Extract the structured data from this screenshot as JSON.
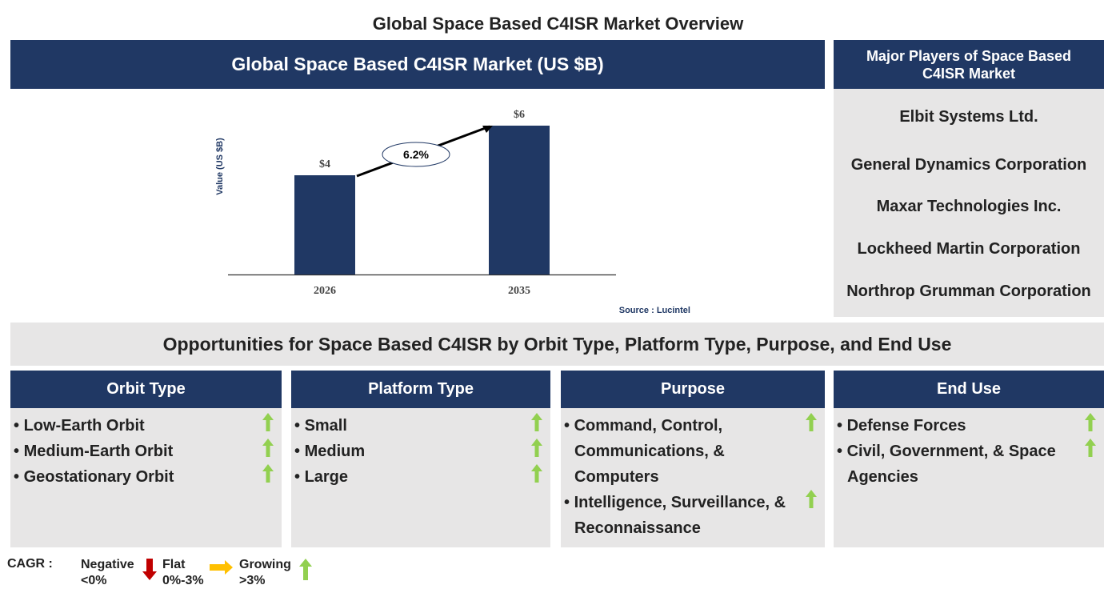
{
  "page_title": "Global Space Based C4ISR Market Overview",
  "chart_panel": {
    "header": "Global Space Based C4ISR Market (US $B)",
    "source": "Source : Lucintel"
  },
  "chart_data": {
    "type": "bar",
    "title": "Global Space Based C4ISR Market (US $B)",
    "ylabel": "Value (US $B)",
    "categories": [
      "2026",
      "2035"
    ],
    "values": [
      4,
      6
    ],
    "data_labels": [
      "$4",
      "$6"
    ],
    "ylim": [
      0,
      6
    ],
    "grid": false,
    "bar_color": "#203864",
    "annotation": {
      "type": "cagr-arrow",
      "label": "6.2%"
    }
  },
  "players": {
    "header": "Major Players of Space Based C4ISR Market",
    "items": [
      "Elbit Systems Ltd.",
      "General Dynamics Corporation",
      "Maxar Technologies Inc.",
      "Lockheed Martin Corporation",
      "Northrop Grumman Corporation"
    ]
  },
  "opportunities": {
    "header": "Opportunities for Space Based C4ISR by Orbit Type, Platform Type, Purpose, and End Use",
    "columns": [
      {
        "title": "Orbit Type",
        "items": [
          {
            "label": "Low-Earth Orbit",
            "trend": "growing"
          },
          {
            "label": "Medium-Earth Orbit",
            "trend": "growing"
          },
          {
            "label": "Geostationary Orbit",
            "trend": "growing"
          }
        ]
      },
      {
        "title": "Platform Type",
        "items": [
          {
            "label": "Small",
            "trend": "growing"
          },
          {
            "label": "Medium",
            "trend": "growing"
          },
          {
            "label": "Large",
            "trend": "growing"
          }
        ]
      },
      {
        "title": "Purpose",
        "items": [
          {
            "label": "Command, Control, Communications, & Computers",
            "trend": "growing"
          },
          {
            "label": "Intelligence, Surveillance, & Reconnaissance",
            "trend": "growing"
          }
        ]
      },
      {
        "title": "End Use",
        "items": [
          {
            "label": "Defense Forces",
            "trend": "growing"
          },
          {
            "label": "Civil, Government, & Space Agencies",
            "trend": "growing"
          }
        ]
      }
    ]
  },
  "legend": {
    "label": "CAGR :",
    "negative": "Negative",
    "negative_range": "<0%",
    "flat": "Flat",
    "flat_range": "0%-3%",
    "growing": "Growing",
    "growing_range": ">3%",
    "colors": {
      "negative": "#c00000",
      "flat": "#ffc000",
      "growing": "#92d050"
    }
  }
}
